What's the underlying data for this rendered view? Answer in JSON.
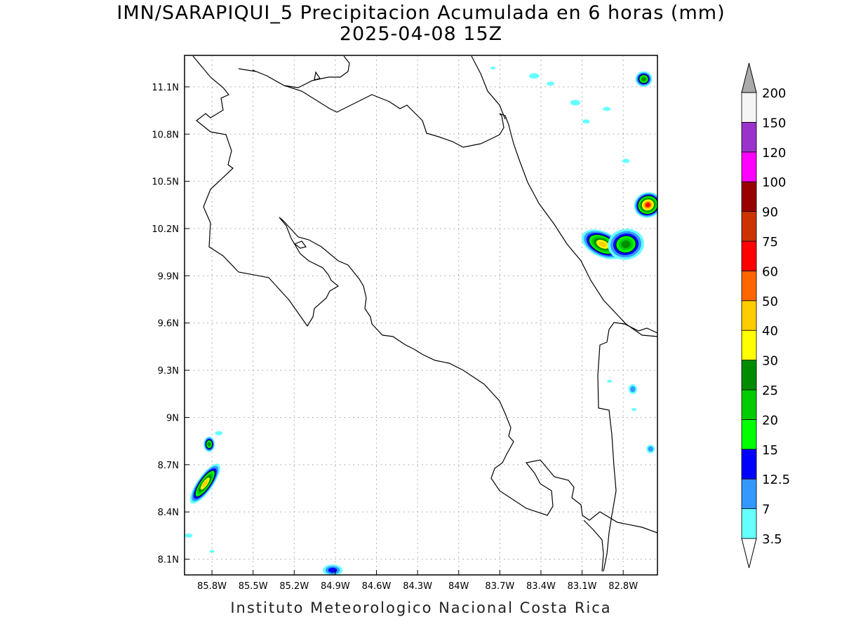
{
  "title": {
    "line1": "IMN/SARAPIQUI_5 Precipitacion Acumulada en 6 horas (mm)",
    "line2": "2025-04-08 15Z"
  },
  "footer": "Instituto Meteorologico Nacional Costa Rica",
  "map": {
    "lon_range": [
      -86.0,
      -82.55
    ],
    "lat_range": [
      8.0,
      11.3
    ],
    "lat_ticks": [
      {
        "value": 11.1,
        "label": "11.1N"
      },
      {
        "value": 10.8,
        "label": "10.8N"
      },
      {
        "value": 10.5,
        "label": "10.5N"
      },
      {
        "value": 10.2,
        "label": "10.2N"
      },
      {
        "value": 9.9,
        "label": "9.9N"
      },
      {
        "value": 9.6,
        "label": "9.6N"
      },
      {
        "value": 9.3,
        "label": "9.3N"
      },
      {
        "value": 9.0,
        "label": "9N"
      },
      {
        "value": 8.7,
        "label": "8.7N"
      },
      {
        "value": 8.4,
        "label": "8.4N"
      },
      {
        "value": 8.1,
        "label": "8.1N"
      }
    ],
    "lon_ticks": [
      {
        "value": -85.8,
        "label": "85.8W"
      },
      {
        "value": -85.5,
        "label": "85.5W"
      },
      {
        "value": -85.2,
        "label": "85.2W"
      },
      {
        "value": -84.9,
        "label": "84.9W"
      },
      {
        "value": -84.6,
        "label": "84.6W"
      },
      {
        "value": -84.3,
        "label": "84.3W"
      },
      {
        "value": -84.0,
        "label": "84W"
      },
      {
        "value": -83.7,
        "label": "83.7W"
      },
      {
        "value": -83.4,
        "label": "83.4W"
      },
      {
        "value": -83.1,
        "label": "83.1W"
      },
      {
        "value": -82.8,
        "label": "82.8W"
      }
    ],
    "grid": true
  },
  "colorbar": {
    "levels": [
      {
        "label": "3.5",
        "color": "#66ffff"
      },
      {
        "label": "7",
        "color": "#3399ff"
      },
      {
        "label": "12.5",
        "color": "#0000ff"
      },
      {
        "label": "15",
        "color": "#00ff00"
      },
      {
        "label": "20",
        "color": "#00cc00"
      },
      {
        "label": "25",
        "color": "#008c00"
      },
      {
        "label": "30",
        "color": "#ffff00"
      },
      {
        "label": "40",
        "color": "#ffcc00"
      },
      {
        "label": "50",
        "color": "#ff6600"
      },
      {
        "label": "60",
        "color": "#ff0000"
      },
      {
        "label": "75",
        "color": "#cc3300"
      },
      {
        "label": "90",
        "color": "#990000"
      },
      {
        "label": "100",
        "color": "#ff00ff"
      },
      {
        "label": "120",
        "color": "#9933cc"
      },
      {
        "label": "150",
        "color": "#f5f5f5"
      },
      {
        "label": "200",
        "color": "#aaaaaa"
      }
    ]
  },
  "precip_cells": [
    {
      "lon": -85.82,
      "lat": 8.83,
      "value": 25
    },
    {
      "lon": -85.85,
      "lat": 8.58,
      "value": 40
    },
    {
      "lon": -84.92,
      "lat": 8.03,
      "value": 12.5
    },
    {
      "lon": -82.65,
      "lat": 11.15,
      "value": 25
    },
    {
      "lon": -82.62,
      "lat": 10.35,
      "value": 60
    },
    {
      "lon": -82.95,
      "lat": 10.1,
      "value": 40
    },
    {
      "lon": -82.78,
      "lat": 10.1,
      "value": 25
    },
    {
      "lon": -82.73,
      "lat": 9.18,
      "value": 7
    },
    {
      "lon": -82.6,
      "lat": 8.8,
      "value": 7
    }
  ]
}
